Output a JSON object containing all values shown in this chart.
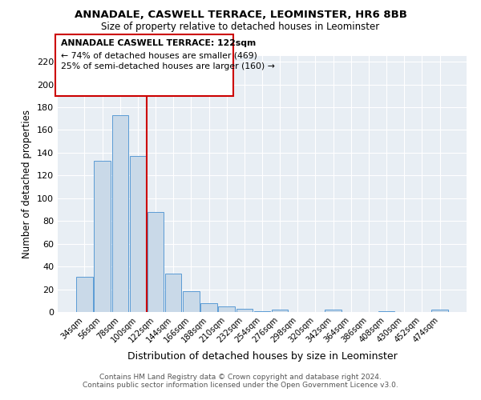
{
  "title": "ANNADALE, CASWELL TERRACE, LEOMINSTER, HR6 8BB",
  "subtitle": "Size of property relative to detached houses in Leominster",
  "xlabel": "Distribution of detached houses by size in Leominster",
  "ylabel": "Number of detached properties",
  "bar_color": "#c9d9e8",
  "bar_edge_color": "#5b9bd5",
  "categories": [
    "34sqm",
    "56sqm",
    "78sqm",
    "100sqm",
    "122sqm",
    "144sqm",
    "166sqm",
    "188sqm",
    "210sqm",
    "232sqm",
    "254sqm",
    "276sqm",
    "298sqm",
    "320sqm",
    "342sqm",
    "364sqm",
    "386sqm",
    "408sqm",
    "430sqm",
    "452sqm",
    "474sqm"
  ],
  "values": [
    31,
    133,
    173,
    137,
    88,
    34,
    18,
    8,
    5,
    3,
    1,
    2,
    0,
    0,
    2,
    0,
    0,
    1,
    0,
    0,
    2
  ],
  "vline_color": "#cc0000",
  "annotation_title": "ANNADALE CASWELL TERRACE: 122sqm",
  "annotation_line1": "← 74% of detached houses are smaller (469)",
  "annotation_line2": "25% of semi-detached houses are larger (160) →",
  "annotation_box_color": "#cc0000",
  "ylim": [
    0,
    225
  ],
  "yticks": [
    0,
    20,
    40,
    60,
    80,
    100,
    120,
    140,
    160,
    180,
    200,
    220
  ],
  "footer1": "Contains HM Land Registry data © Crown copyright and database right 2024.",
  "footer2": "Contains public sector information licensed under the Open Government Licence v3.0.",
  "background_color": "#e8eef4"
}
